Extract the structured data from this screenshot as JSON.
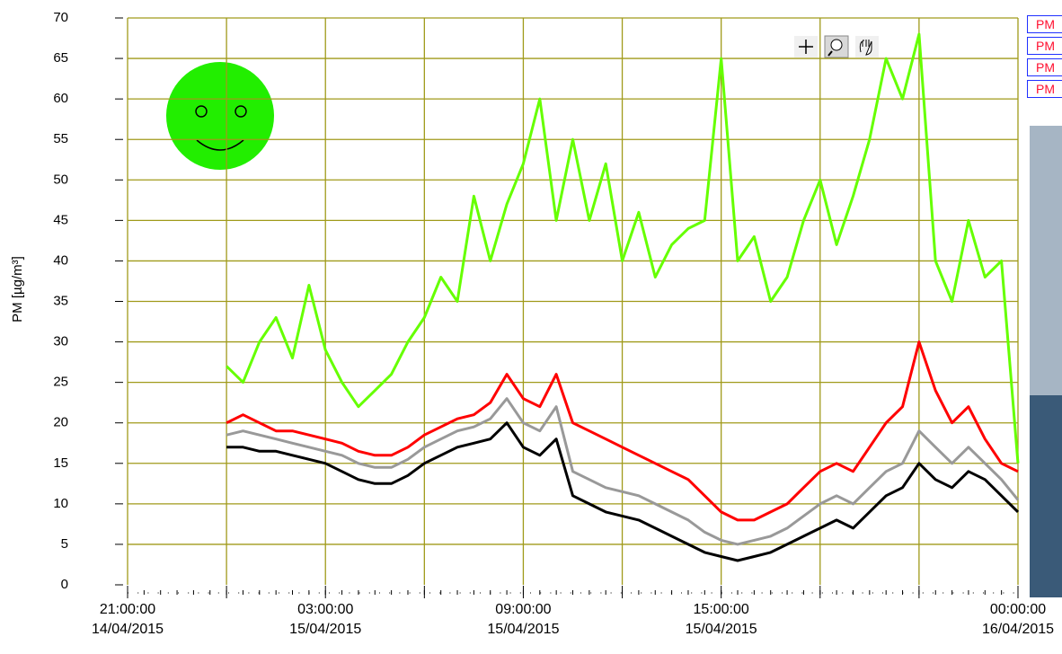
{
  "chart_data": {
    "type": "line",
    "ylabel": "PM [µg/m³]",
    "ylim": [
      0,
      70
    ],
    "yticks": [
      0,
      5,
      10,
      15,
      20,
      25,
      30,
      35,
      40,
      45,
      50,
      55,
      60,
      65,
      70
    ],
    "xlim": [
      "2015-04-14T21:00:00",
      "2015-04-16T00:00:00"
    ],
    "xticks": [
      {
        "value": "2015-04-14T21:00:00",
        "label": "21:00:00\n14/04/2015"
      },
      {
        "value": "2015-04-15T00:00:00",
        "label": null
      },
      {
        "value": "2015-04-15T03:00:00",
        "label": "03:00:00\n15/04/2015"
      },
      {
        "value": "2015-04-15T06:00:00",
        "label": null
      },
      {
        "value": "2015-04-15T09:00:00",
        "label": "09:00:00\n15/04/2015"
      },
      {
        "value": "2015-04-15T12:00:00",
        "label": null
      },
      {
        "value": "2015-04-15T15:00:00",
        "label": "15:00:00\n15/04/2015"
      },
      {
        "value": "2015-04-15T18:00:00",
        "label": null
      },
      {
        "value": "2015-04-15T21:00:00",
        "label": null
      },
      {
        "value": "2015-04-16T00:00:00",
        "label": "00:00:00\n16/04/2015"
      }
    ],
    "grid": true,
    "grid_color": "#a09a1a",
    "x": [
      "2015-04-15T00:00:00",
      "2015-04-15T00:30:00",
      "2015-04-15T01:00:00",
      "2015-04-15T01:30:00",
      "2015-04-15T02:00:00",
      "2015-04-15T02:30:00",
      "2015-04-15T03:00:00",
      "2015-04-15T03:30:00",
      "2015-04-15T04:00:00",
      "2015-04-15T04:30:00",
      "2015-04-15T05:00:00",
      "2015-04-15T05:30:00",
      "2015-04-15T06:00:00",
      "2015-04-15T06:30:00",
      "2015-04-15T07:00:00",
      "2015-04-15T07:30:00",
      "2015-04-15T08:00:00",
      "2015-04-15T08:30:00",
      "2015-04-15T09:00:00",
      "2015-04-15T09:30:00",
      "2015-04-15T10:00:00",
      "2015-04-15T10:30:00",
      "2015-04-15T11:00:00",
      "2015-04-15T11:30:00",
      "2015-04-15T12:00:00",
      "2015-04-15T12:30:00",
      "2015-04-15T13:00:00",
      "2015-04-15T13:30:00",
      "2015-04-15T14:00:00",
      "2015-04-15T14:30:00",
      "2015-04-15T15:00:00",
      "2015-04-15T15:30:00",
      "2015-04-15T16:00:00",
      "2015-04-15T16:30:00",
      "2015-04-15T17:00:00",
      "2015-04-15T17:30:00",
      "2015-04-15T18:00:00",
      "2015-04-15T18:30:00",
      "2015-04-15T19:00:00",
      "2015-04-15T19:30:00",
      "2015-04-15T20:00:00",
      "2015-04-15T20:30:00",
      "2015-04-15T21:00:00",
      "2015-04-15T21:30:00",
      "2015-04-15T22:00:00",
      "2015-04-15T22:30:00",
      "2015-04-15T23:00:00",
      "2015-04-15T23:30:00",
      "2015-04-16T00:00:00"
    ],
    "series": [
      {
        "name": "PM",
        "color": "#66ff00",
        "values": [
          27,
          25,
          30,
          33,
          28,
          37,
          29,
          25,
          22,
          24,
          26,
          30,
          33,
          38,
          35,
          48,
          40,
          47,
          52,
          60,
          45,
          55,
          45,
          52,
          40,
          46,
          38,
          42,
          44,
          45,
          65,
          40,
          43,
          35,
          38,
          45,
          50,
          42,
          48,
          55,
          65,
          60,
          68,
          40,
          35,
          45,
          38,
          40,
          15
        ]
      },
      {
        "name": "PM",
        "color": "#ff0000",
        "values": [
          20,
          21,
          20,
          19,
          19,
          18.5,
          18,
          17.5,
          16.5,
          16,
          16,
          17,
          18.5,
          19.5,
          20.5,
          21,
          22.5,
          26,
          23,
          22,
          26,
          20,
          19,
          18,
          17,
          16,
          15,
          14,
          13,
          11,
          9,
          8,
          8,
          9,
          10,
          12,
          14,
          15,
          14,
          17,
          20,
          22,
          30,
          24,
          20,
          22,
          18,
          15,
          14
        ]
      },
      {
        "name": "PM",
        "color": "#999999",
        "values": [
          18.5,
          19,
          18.5,
          18,
          17.5,
          17,
          16.5,
          16,
          15,
          14.5,
          14.5,
          15.5,
          17,
          18,
          19,
          19.5,
          20.5,
          23,
          20,
          19,
          22,
          14,
          13,
          12,
          11.5,
          11,
          10,
          9,
          8,
          6.5,
          5.5,
          5,
          5.5,
          6,
          7,
          8.5,
          10,
          11,
          10,
          12,
          14,
          15,
          19,
          17,
          15,
          17,
          15,
          13,
          10.5
        ]
      },
      {
        "name": "PM",
        "color": "#000000",
        "values": [
          17,
          17,
          16.5,
          16.5,
          16,
          15.5,
          15,
          14,
          13,
          12.5,
          12.5,
          13.5,
          15,
          16,
          17,
          17.5,
          18,
          20,
          17,
          16,
          18,
          11,
          10,
          9,
          8.5,
          8,
          7,
          6,
          5,
          4,
          3.5,
          3,
          3.5,
          4,
          5,
          6,
          7,
          8,
          7,
          9,
          11,
          12,
          15,
          13,
          12,
          14,
          13,
          11,
          9
        ]
      }
    ]
  }
}
